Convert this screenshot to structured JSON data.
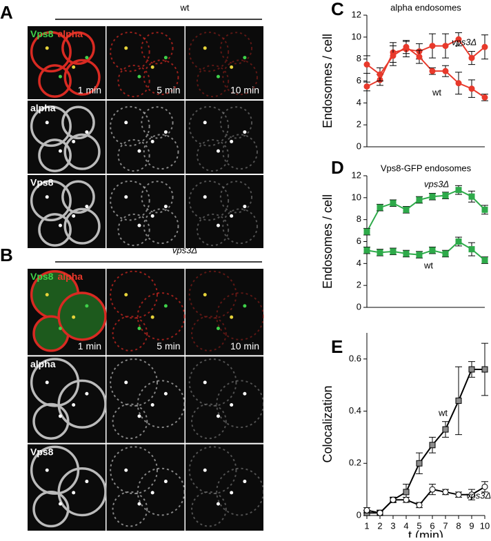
{
  "micrographs": [
    {
      "label": "A",
      "condition": "wt",
      "merge_labels": [
        "Vps8",
        "alpha"
      ],
      "channel_labels": [
        "alpha",
        "Vps8"
      ],
      "times": [
        "1 min",
        "5 min",
        "10 min"
      ]
    },
    {
      "label": "B",
      "condition": "vps3Δ",
      "merge_labels": [
        "Vps8",
        "alpha"
      ],
      "channel_labels": [
        "alpha",
        "Vps8"
      ],
      "times": [
        "1 min",
        "5 min",
        "10 min"
      ]
    }
  ],
  "chart_data": [
    {
      "type": "line",
      "label": "C",
      "title": "alpha endosomes",
      "y_label": "Endosomes / cell",
      "x": [
        1,
        2,
        3,
        4,
        5,
        6,
        7,
        8,
        9,
        10
      ],
      "xlim": [
        1,
        10
      ],
      "ylim": [
        0,
        12
      ],
      "yticks": [
        0,
        2,
        4,
        6,
        8,
        10,
        12
      ],
      "series": [
        {
          "name": "vps3Δ",
          "color": "#e8392b",
          "marker": "circle",
          "fill": "#e8392b",
          "values": [
            5.5,
            6.1,
            8.6,
            8.9,
            8.7,
            9.2,
            9.2,
            9.8,
            8.1,
            9.1
          ],
          "errors": [
            0.4,
            0.5,
            0.9,
            0.7,
            0.7,
            1.1,
            1.1,
            0.6,
            0.6,
            1.1
          ]
        },
        {
          "name": "wt",
          "color": "#e8392b",
          "marker": "circle",
          "fill": "#e8392b",
          "values": [
            7.5,
            6.6,
            8.3,
            9.1,
            8.2,
            6.9,
            6.9,
            5.8,
            5.3,
            4.5
          ],
          "errors": [
            0.8,
            0.6,
            0.9,
            0.6,
            0.6,
            0.3,
            0.5,
            1.0,
            0.8,
            0.3
          ]
        }
      ]
    },
    {
      "type": "line",
      "label": "D",
      "title": "Vps8-GFP endosomes",
      "y_label": "Endosomes / cell",
      "x": [
        1,
        2,
        3,
        4,
        5,
        6,
        7,
        8,
        9,
        10
      ],
      "xlim": [
        1,
        10
      ],
      "ylim": [
        0,
        12
      ],
      "yticks": [
        0,
        2,
        4,
        6,
        8,
        10,
        12
      ],
      "series": [
        {
          "name": "vps3Δ",
          "color": "#2eaa4a",
          "marker": "square",
          "fill": "#2eaa4a",
          "values": [
            6.9,
            9.1,
            9.5,
            8.9,
            9.8,
            10.1,
            10.2,
            10.7,
            10.1,
            8.9
          ],
          "errors": [
            0.3,
            0.3,
            0.3,
            0.3,
            0.3,
            0.3,
            0.3,
            0.4,
            0.5,
            0.4
          ]
        },
        {
          "name": "wt",
          "color": "#2eaa4a",
          "marker": "square",
          "fill": "#2eaa4a",
          "values": [
            5.2,
            5.0,
            5.1,
            4.9,
            4.8,
            5.2,
            4.9,
            6.0,
            5.3,
            4.3
          ],
          "errors": [
            0.3,
            0.3,
            0.3,
            0.3,
            0.3,
            0.3,
            0.3,
            0.4,
            0.6,
            0.3
          ]
        }
      ]
    },
    {
      "type": "line",
      "label": "E",
      "y_label": "Colocalization",
      "x_label": "t (min)",
      "x": [
        1,
        2,
        3,
        4,
        5,
        6,
        7,
        8,
        9,
        10
      ],
      "xlim": [
        1,
        10
      ],
      "xticks": [
        1,
        2,
        3,
        4,
        5,
        6,
        7,
        8,
        9,
        10
      ],
      "ylim": [
        0,
        0.7
      ],
      "yticks": [
        0,
        0.2,
        0.4,
        0.6
      ],
      "series": [
        {
          "name": "wt",
          "color": "#000000",
          "marker": "square",
          "fill": "#8c8c8c",
          "values": [
            0.01,
            0.01,
            0.06,
            0.09,
            0.2,
            0.27,
            0.33,
            0.44,
            0.56,
            0.56
          ],
          "errors": [
            0.01,
            0.01,
            0.01,
            0.03,
            0.04,
            0.03,
            0.03,
            0.13,
            0.03,
            0.1
          ]
        },
        {
          "name": "vps3Δ",
          "color": "#000000",
          "marker": "circle",
          "fill": "#ffffff",
          "values": [
            0.02,
            0.01,
            0.06,
            0.06,
            0.04,
            0.1,
            0.09,
            0.08,
            0.08,
            0.11
          ],
          "errors": [
            0.01,
            0.01,
            0.01,
            0.01,
            0.01,
            0.02,
            0.01,
            0.01,
            0.02,
            0.02
          ]
        }
      ]
    }
  ]
}
